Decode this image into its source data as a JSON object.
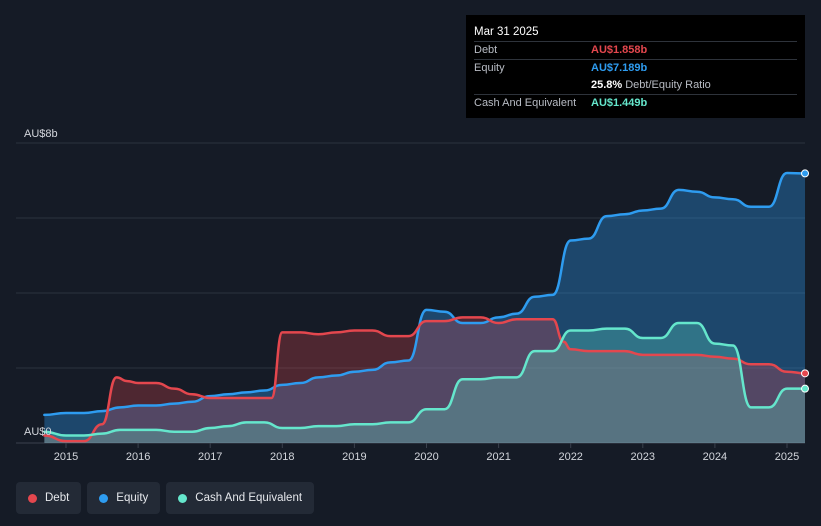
{
  "tooltip": {
    "date": "Mar 31 2025",
    "debt_label": "Debt",
    "debt_value": "AU$1.858b",
    "equity_label": "Equity",
    "equity_value": "AU$7.189b",
    "ratio_value": "25.8%",
    "ratio_label": "Debt/Equity Ratio",
    "cash_label": "Cash And Equivalent",
    "cash_value": "AU$1.449b"
  },
  "colors": {
    "debt": "#e4474e",
    "equity": "#2e9cf0",
    "cash": "#65e6cc",
    "background": "#151b26"
  },
  "legend": [
    {
      "key": "debt",
      "label": "Debt"
    },
    {
      "key": "equity",
      "label": "Equity"
    },
    {
      "key": "cash",
      "label": "Cash And Equivalent"
    }
  ],
  "chart_data": {
    "type": "area",
    "y_top_label": "AU$8b",
    "y_bottom_label": "AU$0",
    "ylim": [
      0,
      8
    ],
    "xlim": [
      2014.7,
      2025.25
    ],
    "x_ticks": [
      "2015",
      "2016",
      "2017",
      "2018",
      "2019",
      "2020",
      "2021",
      "2022",
      "2023",
      "2024",
      "2025"
    ],
    "grid": true,
    "series": [
      {
        "name": "Debt",
        "color": "#e4474e",
        "x": [
          2014.7,
          2015.0,
          2015.25,
          2015.5,
          2015.7,
          2015.85,
          2016.0,
          2016.25,
          2016.5,
          2016.75,
          2017.0,
          2017.25,
          2017.5,
          2017.75,
          2017.85,
          2018.0,
          2018.25,
          2018.5,
          2018.75,
          2019.0,
          2019.25,
          2019.5,
          2019.75,
          2020.0,
          2020.25,
          2020.5,
          2020.75,
          2021.0,
          2021.25,
          2021.5,
          2021.75,
          2021.9,
          2022.0,
          2022.25,
          2022.5,
          2022.75,
          2023.0,
          2023.25,
          2023.5,
          2023.75,
          2024.0,
          2024.25,
          2024.5,
          2024.75,
          2025.0,
          2025.25
        ],
        "values": [
          0.2,
          0.05,
          0.05,
          0.5,
          1.75,
          1.65,
          1.6,
          1.6,
          1.45,
          1.3,
          1.2,
          1.2,
          1.2,
          1.2,
          1.2,
          2.95,
          2.95,
          2.9,
          2.95,
          3.0,
          3.0,
          2.85,
          2.85,
          3.25,
          3.25,
          3.35,
          3.35,
          3.2,
          3.3,
          3.3,
          3.3,
          2.7,
          2.5,
          2.45,
          2.45,
          2.45,
          2.35,
          2.35,
          2.35,
          2.35,
          2.3,
          2.25,
          2.1,
          2.1,
          1.9,
          1.858
        ]
      },
      {
        "name": "Equity",
        "color": "#2e9cf0",
        "x": [
          2014.7,
          2015.0,
          2015.25,
          2015.5,
          2015.75,
          2016.0,
          2016.25,
          2016.5,
          2016.75,
          2017.0,
          2017.25,
          2017.5,
          2017.75,
          2018.0,
          2018.25,
          2018.5,
          2018.75,
          2019.0,
          2019.25,
          2019.5,
          2019.75,
          2020.0,
          2020.25,
          2020.5,
          2020.75,
          2021.0,
          2021.25,
          2021.5,
          2021.75,
          2022.0,
          2022.25,
          2022.5,
          2022.75,
          2023.0,
          2023.25,
          2023.5,
          2023.75,
          2024.0,
          2024.25,
          2024.5,
          2024.75,
          2025.0,
          2025.25
        ],
        "values": [
          0.75,
          0.8,
          0.8,
          0.85,
          0.95,
          1.0,
          1.0,
          1.05,
          1.1,
          1.25,
          1.3,
          1.35,
          1.4,
          1.55,
          1.6,
          1.75,
          1.8,
          1.9,
          1.95,
          2.15,
          2.2,
          3.55,
          3.5,
          3.2,
          3.2,
          3.35,
          3.45,
          3.9,
          3.95,
          5.4,
          5.45,
          6.05,
          6.1,
          6.2,
          6.25,
          6.75,
          6.7,
          6.55,
          6.5,
          6.3,
          6.3,
          7.2,
          7.189
        ]
      },
      {
        "name": "Cash And Equivalent",
        "color": "#65e6cc",
        "x": [
          2014.7,
          2015.0,
          2015.25,
          2015.5,
          2015.75,
          2016.0,
          2016.25,
          2016.5,
          2016.75,
          2017.0,
          2017.25,
          2017.5,
          2017.75,
          2018.0,
          2018.25,
          2018.5,
          2018.75,
          2019.0,
          2019.25,
          2019.5,
          2019.75,
          2020.0,
          2020.25,
          2020.5,
          2020.75,
          2021.0,
          2021.25,
          2021.5,
          2021.75,
          2022.0,
          2022.25,
          2022.5,
          2022.75,
          2023.0,
          2023.25,
          2023.5,
          2023.75,
          2024.0,
          2024.25,
          2024.5,
          2024.75,
          2025.0,
          2025.25
        ],
        "values": [
          0.3,
          0.2,
          0.2,
          0.25,
          0.35,
          0.35,
          0.35,
          0.3,
          0.3,
          0.4,
          0.45,
          0.55,
          0.55,
          0.4,
          0.4,
          0.45,
          0.45,
          0.5,
          0.5,
          0.55,
          0.55,
          0.9,
          0.9,
          1.7,
          1.7,
          1.75,
          1.75,
          2.45,
          2.45,
          3.0,
          3.0,
          3.05,
          3.05,
          2.8,
          2.8,
          3.2,
          3.2,
          2.65,
          2.6,
          0.95,
          0.95,
          1.45,
          1.449
        ]
      }
    ]
  }
}
